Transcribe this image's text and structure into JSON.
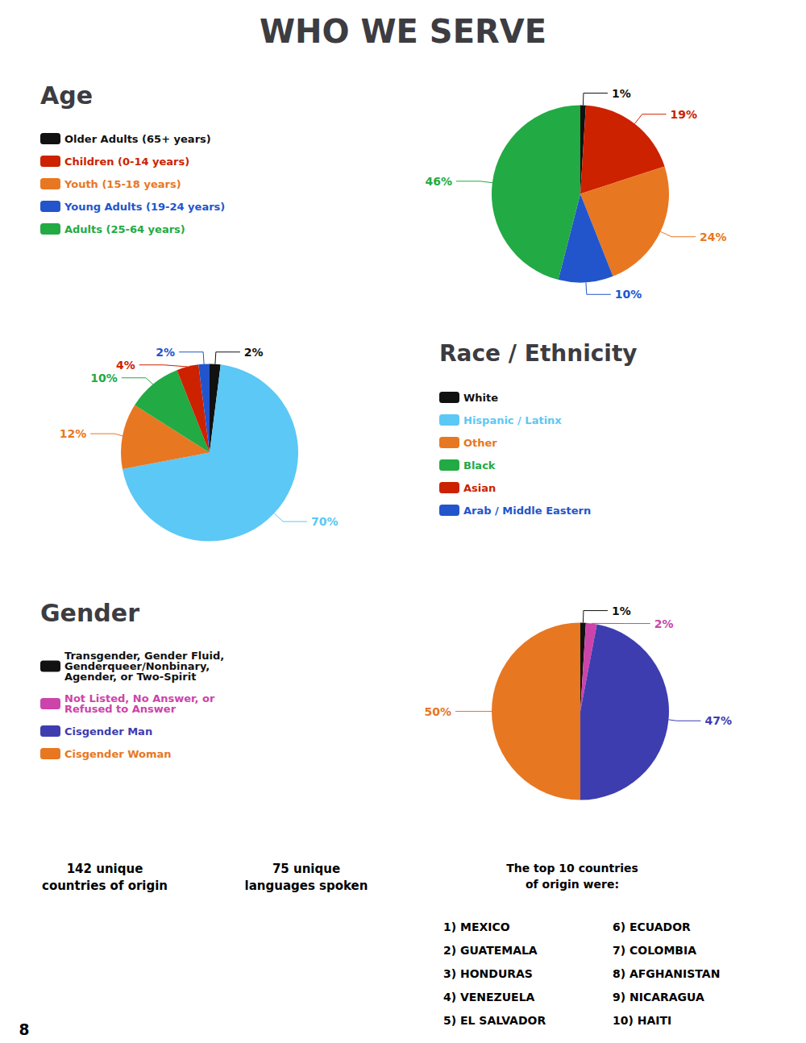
{
  "title": "WHO WE SERVE",
  "chart_data": [
    {
      "type": "pie",
      "title": "Age",
      "categories": [
        "Older Adults (65+ years)",
        "Children (0-14 years)",
        "Youth (15-18 years)",
        "Young Adults (19-24 years)",
        "Adults (25-64 years)"
      ],
      "values": [
        1,
        19,
        24,
        10,
        46
      ],
      "value_labels": [
        "1%",
        "19%",
        "24%",
        "10%",
        "46%"
      ],
      "colors": [
        "#111111",
        "#cc2200",
        "#e87722",
        "#2255cc",
        "#22aa44"
      ],
      "data_labels": true,
      "legend": "left"
    },
    {
      "type": "pie",
      "title": "Race / Ethnicity",
      "categories": [
        "White",
        "Hispanic / Latinx",
        "Other",
        "Black",
        "Asian",
        "Arab / Middle Eastern"
      ],
      "values": [
        2,
        70,
        12,
        10,
        4,
        2
      ],
      "value_labels": [
        "2%",
        "70%",
        "12%",
        "10%",
        "4%",
        "2%"
      ],
      "colors": [
        "#111111",
        "#5bc8f5",
        "#e87722",
        "#22aa44",
        "#cc2200",
        "#2255cc"
      ],
      "data_labels": true,
      "legend": "right"
    },
    {
      "type": "pie",
      "title": "Gender",
      "categories": [
        "Transgender, Gender Fluid,\nGenderqueer/Nonbinary,\nAgender, or Two-Spirit",
        "Not Listed, No Answer, or\nRefused to Answer",
        "Cisgender Man",
        "Cisgender Woman"
      ],
      "values": [
        1,
        2,
        47,
        50
      ],
      "value_labels": [
        "1%",
        "2%",
        "47%",
        "50%"
      ],
      "colors": [
        "#111111",
        "#cc44aa",
        "#3d3db0",
        "#e87722"
      ],
      "data_labels": true,
      "legend": "left"
    }
  ],
  "annotations": [
    "142 unique\ncountries of origin",
    "75 unique\nlanguages spoken",
    "The top 10 countries\nof origin were:",
    "1) MEXICO",
    "2) GUATEMALA",
    "3) HONDURAS",
    "4) VENEZUELA",
    "5) EL SALVADOR",
    "6) ECUADOR",
    "7) COLOMBIA",
    "8) AFGHANISTAN",
    "9) NICARAGUA",
    "10) HAITI",
    "8"
  ]
}
